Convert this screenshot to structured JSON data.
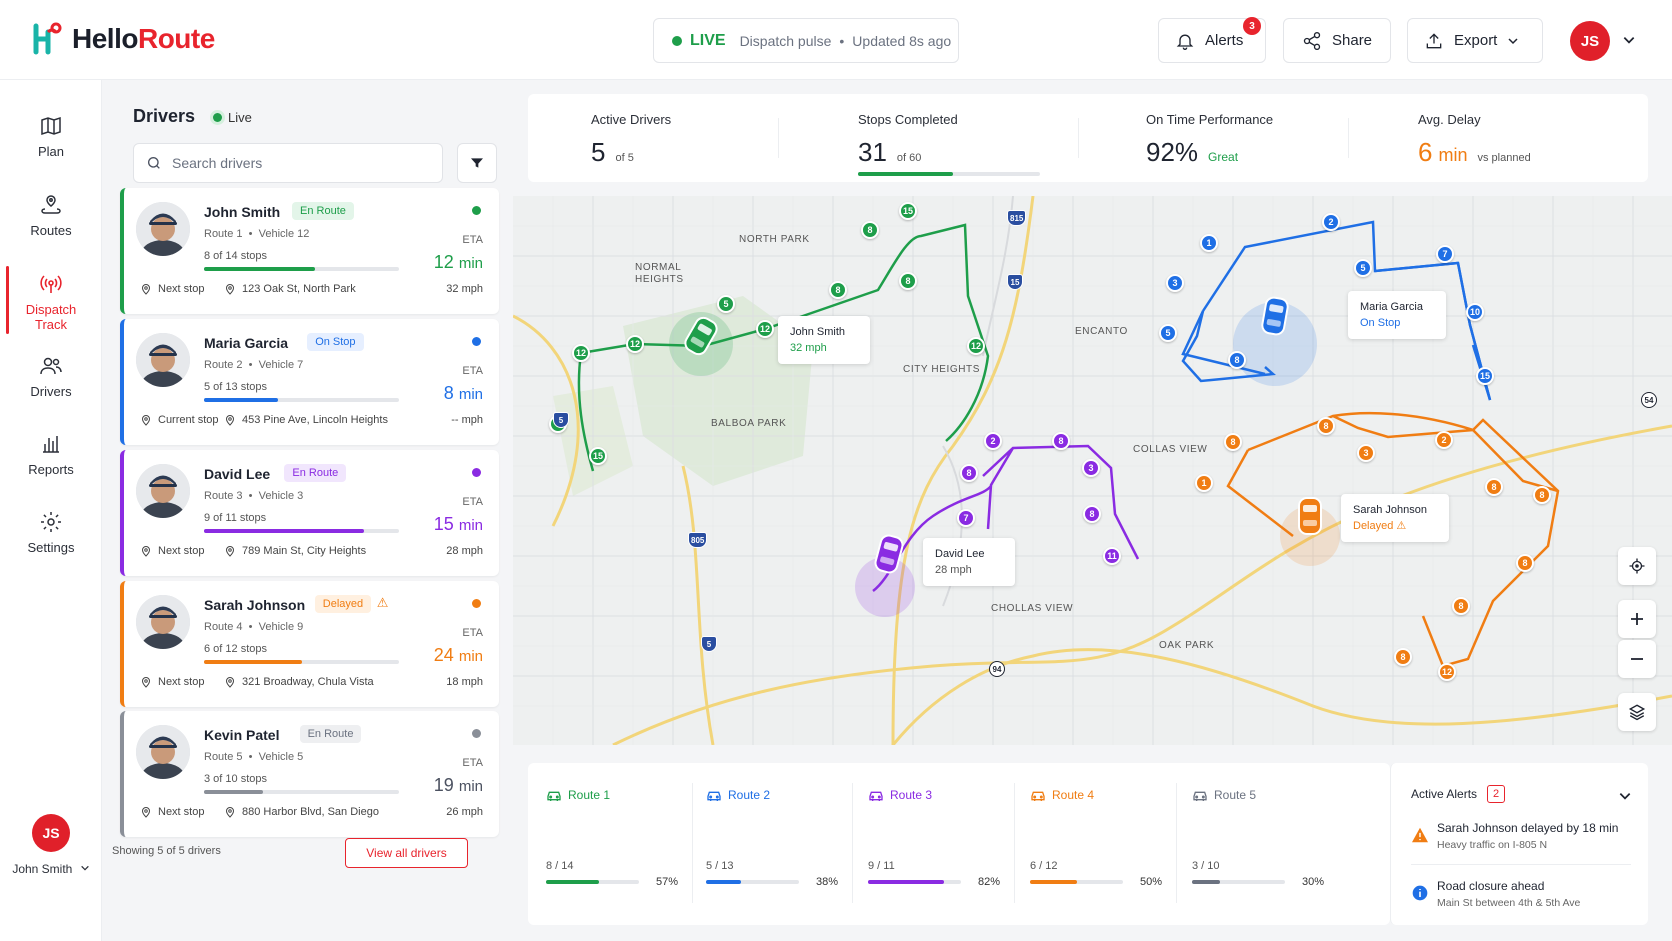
{
  "brand": {
    "name_part1": "Hello",
    "name_part2": "Route"
  },
  "live_status": {
    "label": "LIVE",
    "title": "Dispatch pulse",
    "updated": "Updated 8s ago"
  },
  "header": {
    "alerts_label": "Alerts",
    "alerts_count": "3",
    "share_label": "Share",
    "export_label": "Export",
    "user_initials": "JS"
  },
  "nav": [
    {
      "label": "Plan",
      "icon": "map-icon"
    },
    {
      "label": "Routes",
      "icon": "routes-icon"
    },
    {
      "label": "Dispatch",
      "label2": "Track",
      "icon": "broadcast-icon",
      "active": true
    },
    {
      "label": "Drivers",
      "icon": "users-icon"
    },
    {
      "label": "Reports",
      "icon": "bar-chart-icon"
    },
    {
      "label": "Settings",
      "icon": "gear-icon"
    }
  ],
  "user": {
    "initials": "JS",
    "name": "John Smith"
  },
  "drivers_panel": {
    "title": "Drivers",
    "live": "Live",
    "search_placeholder": "Search drivers",
    "showing": "Showing 5 of 5 drivers",
    "view_all": "View all drivers",
    "eta_label": "ETA"
  },
  "drivers": [
    {
      "name": "John Smith",
      "status": "En Route",
      "route": "Route 1",
      "vehicle": "Vehicle 12",
      "stops": "8 of 14 stops",
      "progress": 0.57,
      "eta": "12",
      "eta_unit": "min",
      "stop_label": "Next stop",
      "address": "123 Oak St, North Park",
      "speed": "32 mph",
      "color": "#1e9e4a",
      "status_bg": "#e3f5e9",
      "status_color": "#1e9e4a"
    },
    {
      "name": "Maria Garcia",
      "status": "On Stop",
      "route": "Route 2",
      "vehicle": "Vehicle 7",
      "stops": "5 of 13 stops",
      "progress": 0.38,
      "eta": "8",
      "eta_unit": "min",
      "stop_label": "Current stop",
      "address": "453 Pine Ave, Lincoln Heights",
      "speed": "-- mph",
      "color": "#1f6fe5",
      "status_bg": "#e6efff",
      "status_color": "#1f6fe5"
    },
    {
      "name": "David Lee",
      "status": "En Route",
      "route": "Route 3",
      "vehicle": "Vehicle 3",
      "stops": "9 of 11 stops",
      "progress": 0.82,
      "eta": "15",
      "eta_unit": "min",
      "stop_label": "Next stop",
      "address": "789 Main St, City Heights",
      "speed": "28 mph",
      "color": "#8a2be2",
      "status_bg": "#f1e6fd",
      "status_color": "#8a2be2"
    },
    {
      "name": "Sarah Johnson",
      "status": "Delayed",
      "route": "Route 4",
      "vehicle": "Vehicle 9",
      "stops": "6 of 12 stops",
      "progress": 0.5,
      "eta": "24",
      "eta_unit": "min",
      "stop_label": "Next stop",
      "address": "321 Broadway, Chula Vista",
      "speed": "18 mph",
      "color": "#f07d13",
      "status_bg": "#fff0e0",
      "status_color": "#f07d13"
    },
    {
      "name": "Kevin Patel",
      "status": "En Route",
      "route": "Route 5",
      "vehicle": "Vehicle 5",
      "stops": "3 of 10 stops",
      "progress": 0.3,
      "eta": "19",
      "eta_unit": "min",
      "stop_label": "Next stop",
      "address": "880 Harbor Blvd, San Diego",
      "speed": "26 mph",
      "color": "#8a8f98",
      "status_bg": "#eeeff1",
      "status_color": "#6b7280"
    }
  ],
  "stats": {
    "active_drivers": {
      "label": "Active Drivers",
      "value": "5",
      "sub": "of 5"
    },
    "stops_completed": {
      "label": "Stops Completed",
      "value": "31",
      "sub": "of 60",
      "progress": 0.52
    },
    "on_time": {
      "label": "On Time Performance",
      "value": "92%",
      "sub": "Great"
    },
    "avg_delay": {
      "label": "Avg. Delay",
      "value": "6",
      "unit": "min",
      "sub": "vs planned"
    }
  },
  "map": {
    "labels": [
      "NORTH PARK",
      "NORMAL",
      "HEIGHTS",
      "ENCANTO",
      "CITY HEIGHTS",
      "BALBOA PARK",
      "COLLAS VIEW",
      "CHOLLAS VIEW",
      "OAK PARK"
    ],
    "highway_shields": [
      "815",
      "15",
      "5",
      "805",
      "5",
      "94",
      "54"
    ],
    "popups": [
      {
        "name": "John Smith",
        "detail": "32 mph"
      },
      {
        "name": "Maria Garcia",
        "detail": "On Stop"
      },
      {
        "name": "David Lee",
        "detail": "28 mph"
      },
      {
        "name": "Sarah Johnson",
        "detail": "Delayed"
      }
    ],
    "route1_stops": [
      "12",
      "12",
      "5",
      "12",
      "8",
      "8",
      "15",
      "8",
      "12",
      "15",
      "5"
    ],
    "route2_stops": [
      "1",
      "2",
      "3",
      "5",
      "5",
      "7",
      "8",
      "10",
      "15"
    ],
    "route3_stops": [
      "2",
      "8",
      "8",
      "3",
      "7",
      "8",
      "11"
    ],
    "route4_stops": [
      "8",
      "1",
      "3",
      "8",
      "2",
      "8",
      "8",
      "8",
      "8",
      "8",
      "12"
    ]
  },
  "routes": [
    {
      "name": "Route 1",
      "stops": "8 / 14",
      "progress": 0.57,
      "pct": "57%",
      "color": "#1e9e4a"
    },
    {
      "name": "Route 2",
      "stops": "5 / 13",
      "progress": 0.38,
      "pct": "38%",
      "color": "#1f6fe5"
    },
    {
      "name": "Route 3",
      "stops": "9 / 11",
      "progress": 0.82,
      "pct": "82%",
      "color": "#8a2be2"
    },
    {
      "name": "Route 4",
      "stops": "6 / 12",
      "progress": 0.5,
      "pct": "50%",
      "color": "#f07d13"
    },
    {
      "name": "Route 5",
      "stops": "3 / 10",
      "progress": 0.3,
      "pct": "30%",
      "color": "#6b7280"
    }
  ],
  "active_alerts": {
    "title": "Active Alerts",
    "count": "2",
    "items": [
      {
        "title": "Sarah Johnson delayed by 18 min",
        "sub": "Heavy traffic on I-805 N",
        "type": "warning"
      },
      {
        "title": "Road closure ahead",
        "sub": "Main St between 4th & 5th Ave",
        "type": "info"
      }
    ]
  },
  "colors": {
    "brand_red": "#e8242d",
    "green": "#1e9e4a",
    "blue": "#1f6fe5",
    "purple": "#8a2be2",
    "orange": "#f07d13"
  }
}
